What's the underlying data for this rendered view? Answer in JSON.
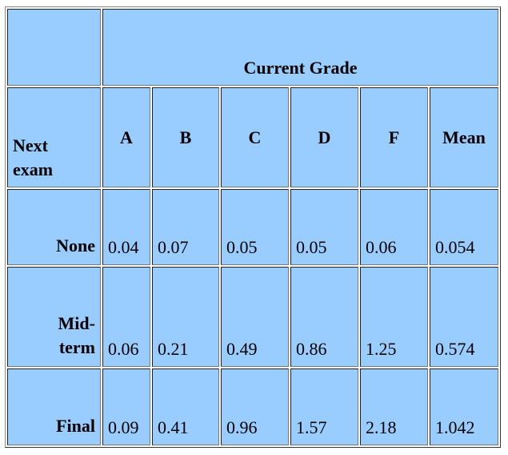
{
  "table": {
    "title": "Current Grade",
    "row_header": "Next exam",
    "columns": [
      "A",
      "B",
      "C",
      "D",
      "F",
      "Mean"
    ],
    "rows": [
      {
        "label": "None",
        "values": [
          0.04,
          0.07,
          0.05,
          0.05,
          0.06,
          0.054
        ]
      },
      {
        "label": "Mid-term",
        "values": [
          0.06,
          0.21,
          0.49,
          0.86,
          1.25,
          0.574
        ]
      },
      {
        "label": "Final",
        "values": [
          0.09,
          0.41,
          0.96,
          1.57,
          2.18,
          1.042
        ]
      }
    ]
  }
}
